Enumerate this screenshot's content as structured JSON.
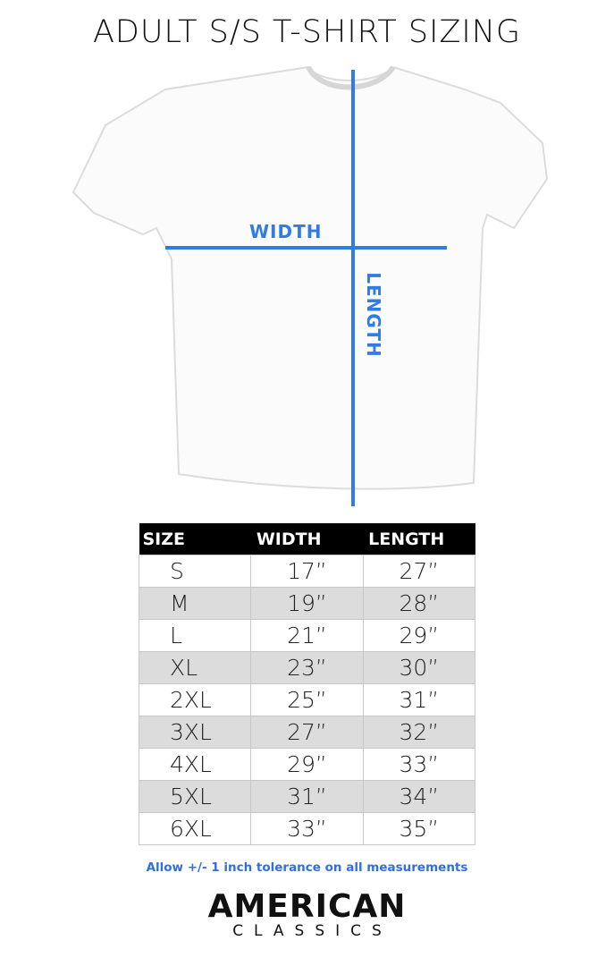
{
  "title": "ADULT S/S T-SHIRT SIZING",
  "diagram": {
    "width_label": "WIDTH",
    "length_label": "LENGTH",
    "line_color": "#2f7be8"
  },
  "table": {
    "headers": [
      "SIZE",
      "WIDTH",
      "LENGTH"
    ],
    "rows": [
      {
        "size": "S",
        "width": "17”",
        "length": "27”"
      },
      {
        "size": "M",
        "width": "19”",
        "length": "28”"
      },
      {
        "size": "L",
        "width": "21”",
        "length": "29”"
      },
      {
        "size": "XL",
        "width": "23”",
        "length": "30”"
      },
      {
        "size": "2XL",
        "width": "25”",
        "length": "31”"
      },
      {
        "size": "3XL",
        "width": "27”",
        "length": "32”"
      },
      {
        "size": "4XL",
        "width": "29”",
        "length": "33”"
      },
      {
        "size": "5XL",
        "width": "31”",
        "length": "34”"
      },
      {
        "size": "6XL",
        "width": "33”",
        "length": "35”"
      }
    ]
  },
  "note": "Allow +/- 1 inch tolerance on all measurements",
  "brand": {
    "line1": "AMERICAN",
    "line2": "CLASSICS"
  }
}
